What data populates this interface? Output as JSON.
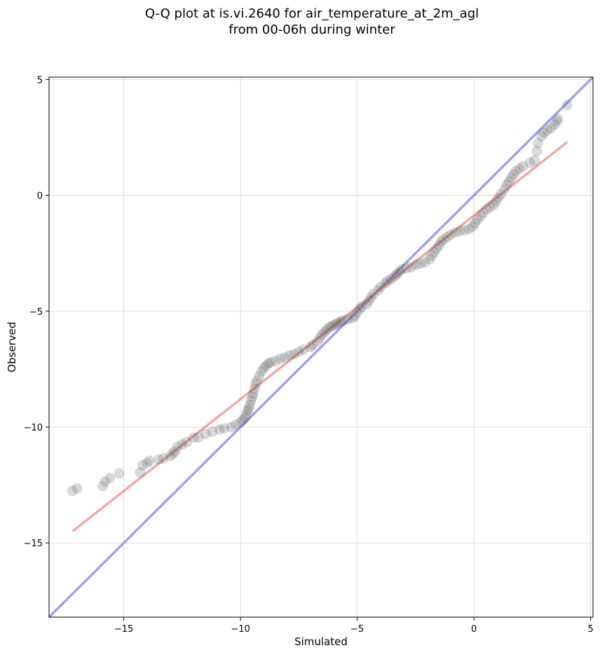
{
  "chart_data": {
    "type": "scatter",
    "title": [
      "Q-Q plot at is.vi.2640 for air_temperature_at_2m_agl",
      "from 00-06h during winter"
    ],
    "xlabel": "Simulated",
    "ylabel": "Observed",
    "xlim": [
      -18.2,
      5.1
    ],
    "ylim": [
      -18.2,
      5.1
    ],
    "x_ticks": [
      -15,
      -10,
      -5,
      0,
      5
    ],
    "y_ticks": [
      -15,
      -10,
      -5,
      0,
      5
    ],
    "x_tick_labels": [
      "−15",
      "−10",
      "−5",
      "0",
      "5"
    ],
    "y_tick_labels": [
      "−15",
      "−10",
      "−5",
      "0",
      "5"
    ],
    "grid": true,
    "colors": {
      "points": "#555555",
      "fit_line": "#f08080",
      "identity_line": "#8080f0",
      "grid": "#dddddd"
    },
    "identity_line": {
      "x": [
        -18.2,
        5.1
      ],
      "y": [
        -18.2,
        5.1
      ]
    },
    "fit_line": {
      "x": [
        -17.2,
        4.0
      ],
      "y": [
        -14.5,
        2.3
      ]
    },
    "points": [
      [
        -17.2,
        -12.75
      ],
      [
        -17.0,
        -12.65
      ],
      [
        -15.9,
        -12.55
      ],
      [
        -15.8,
        -12.35
      ],
      [
        -15.6,
        -12.2
      ],
      [
        -15.2,
        -12.0
      ],
      [
        -14.3,
        -11.95
      ],
      [
        -14.2,
        -11.65
      ],
      [
        -14.0,
        -11.55
      ],
      [
        -13.9,
        -11.45
      ],
      [
        -13.5,
        -11.4
      ],
      [
        -13.3,
        -11.35
      ],
      [
        -13.0,
        -11.25
      ],
      [
        -12.9,
        -11.15
      ],
      [
        -12.8,
        -11.05
      ],
      [
        -12.7,
        -10.85
      ],
      [
        -12.5,
        -10.75
      ],
      [
        -12.3,
        -10.65
      ],
      [
        -12.0,
        -10.45
      ],
      [
        -11.8,
        -10.45
      ],
      [
        -11.5,
        -10.3
      ],
      [
        -11.2,
        -10.2
      ],
      [
        -10.9,
        -10.1
      ],
      [
        -10.7,
        -10.05
      ],
      [
        -10.4,
        -10.0
      ],
      [
        -10.2,
        -9.9
      ],
      [
        -10.0,
        -9.8
      ],
      [
        -9.9,
        -9.7
      ],
      [
        -9.8,
        -9.6
      ],
      [
        -9.75,
        -9.45
      ],
      [
        -9.7,
        -9.3
      ],
      [
        -9.65,
        -9.2
      ],
      [
        -9.6,
        -9.05
      ],
      [
        -9.55,
        -8.85
      ],
      [
        -9.5,
        -8.7
      ],
      [
        -9.45,
        -8.55
      ],
      [
        -9.4,
        -8.35
      ],
      [
        -9.35,
        -8.15
      ],
      [
        -9.3,
        -8.0
      ],
      [
        -9.2,
        -7.8
      ],
      [
        -9.1,
        -7.6
      ],
      [
        -9.0,
        -7.45
      ],
      [
        -8.9,
        -7.35
      ],
      [
        -8.8,
        -7.25
      ],
      [
        -8.7,
        -7.2
      ],
      [
        -8.5,
        -7.15
      ],
      [
        -8.3,
        -7.05
      ],
      [
        -8.1,
        -7.0
      ],
      [
        -7.9,
        -6.9
      ],
      [
        -7.7,
        -6.85
      ],
      [
        -7.5,
        -6.75
      ],
      [
        -7.3,
        -6.65
      ],
      [
        -7.0,
        -6.55
      ],
      [
        -6.9,
        -6.45
      ],
      [
        -6.7,
        -6.3
      ],
      [
        -6.6,
        -6.15
      ],
      [
        -6.5,
        -6.0
      ],
      [
        -6.4,
        -5.9
      ],
      [
        -6.3,
        -5.8
      ],
      [
        -6.2,
        -5.7
      ],
      [
        -6.1,
        -5.65
      ],
      [
        -6.0,
        -5.6
      ],
      [
        -5.9,
        -5.55
      ],
      [
        -5.8,
        -5.5
      ],
      [
        -5.7,
        -5.45
      ],
      [
        -5.6,
        -5.4
      ],
      [
        -5.4,
        -5.35
      ],
      [
        -5.2,
        -5.3
      ],
      [
        -5.1,
        -5.2
      ],
      [
        -5.0,
        -5.05
      ],
      [
        -4.9,
        -4.9
      ],
      [
        -4.8,
        -4.8
      ],
      [
        -4.6,
        -4.7
      ],
      [
        -4.5,
        -4.55
      ],
      [
        -4.4,
        -4.4
      ],
      [
        -4.3,
        -4.25
      ],
      [
        -4.1,
        -4.1
      ],
      [
        -4.0,
        -3.95
      ],
      [
        -3.8,
        -3.8
      ],
      [
        -3.7,
        -3.7
      ],
      [
        -3.55,
        -3.6
      ],
      [
        -3.4,
        -3.5
      ],
      [
        -3.3,
        -3.4
      ],
      [
        -3.2,
        -3.3
      ],
      [
        -3.1,
        -3.2
      ],
      [
        -2.9,
        -3.15
      ],
      [
        -2.7,
        -3.1
      ],
      [
        -2.5,
        -3.0
      ],
      [
        -2.3,
        -2.95
      ],
      [
        -2.1,
        -2.9
      ],
      [
        -1.9,
        -2.75
      ],
      [
        -1.8,
        -2.6
      ],
      [
        -1.7,
        -2.45
      ],
      [
        -1.6,
        -2.3
      ],
      [
        -1.5,
        -2.15
      ],
      [
        -1.4,
        -2.0
      ],
      [
        -1.3,
        -1.9
      ],
      [
        -1.15,
        -1.8
      ],
      [
        -1.0,
        -1.7
      ],
      [
        -0.8,
        -1.6
      ],
      [
        -0.6,
        -1.55
      ],
      [
        -0.4,
        -1.5
      ],
      [
        -0.2,
        -1.45
      ],
      [
        -0.05,
        -1.35
      ],
      [
        0.05,
        -1.2
      ],
      [
        0.15,
        -1.05
      ],
      [
        0.3,
        -0.9
      ],
      [
        0.4,
        -0.75
      ],
      [
        0.55,
        -0.6
      ],
      [
        0.7,
        -0.5
      ],
      [
        0.85,
        -0.4
      ],
      [
        0.95,
        -0.25
      ],
      [
        1.05,
        -0.1
      ],
      [
        1.15,
        0.05
      ],
      [
        1.3,
        0.25
      ],
      [
        1.4,
        0.45
      ],
      [
        1.5,
        0.6
      ],
      [
        1.6,
        0.75
      ],
      [
        1.7,
        0.9
      ],
      [
        1.8,
        1.05
      ],
      [
        1.95,
        1.15
      ],
      [
        2.1,
        1.25
      ],
      [
        2.4,
        1.4
      ],
      [
        2.6,
        1.5
      ],
      [
        2.7,
        1.9
      ],
      [
        2.75,
        2.25
      ],
      [
        2.9,
        2.55
      ],
      [
        3.0,
        2.7
      ],
      [
        3.15,
        2.8
      ],
      [
        3.3,
        2.9
      ],
      [
        3.45,
        3.05
      ],
      [
        3.55,
        3.2
      ],
      [
        3.6,
        3.3
      ],
      [
        4.0,
        3.9
      ]
    ]
  }
}
